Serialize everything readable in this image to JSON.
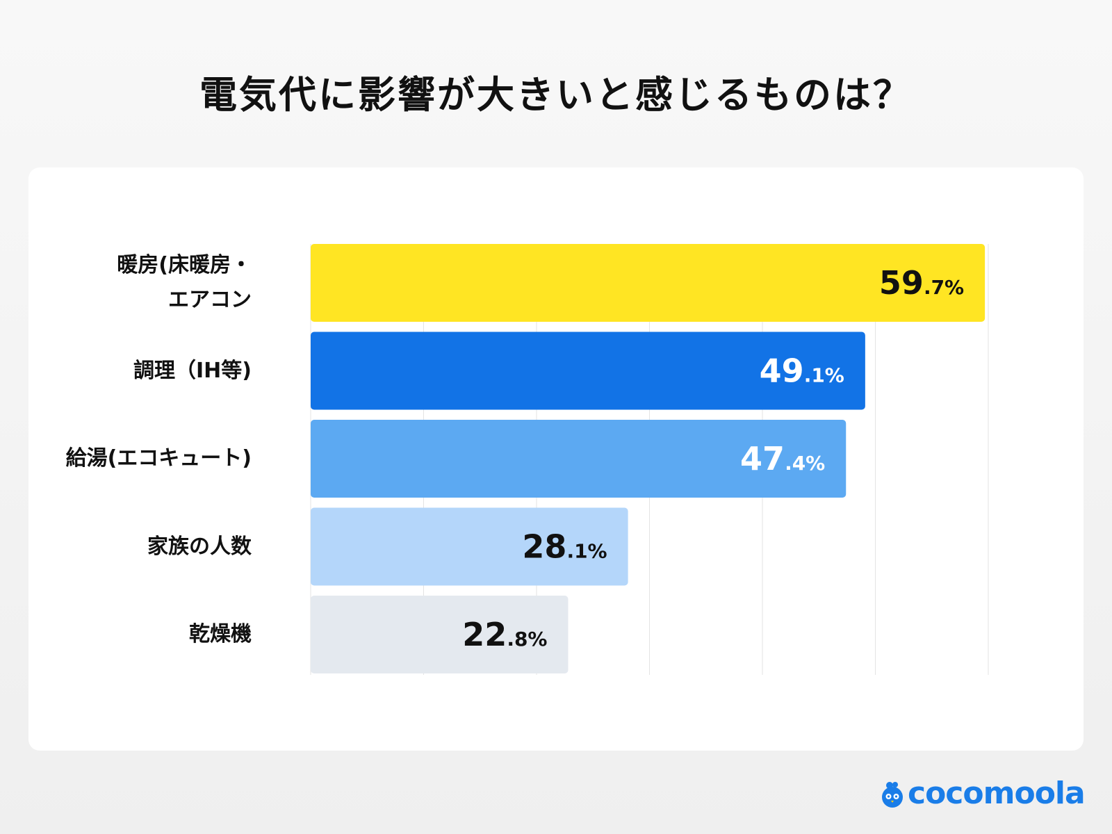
{
  "title": "電気代に影響が大きいと感じるものは？",
  "chart_data": {
    "type": "bar",
    "orientation": "horizontal",
    "categories": [
      "暖房(床暖房・\nエアコン",
      "調理（IH等)",
      "給湯(エコキュート)",
      "家族の人数",
      "乾燥機"
    ],
    "values": [
      59.7,
      49.1,
      47.4,
      28.1,
      22.8
    ],
    "value_suffix": "%",
    "xlim": [
      0,
      60
    ],
    "grid": true,
    "colors": [
      "#FFE523",
      "#1273E6",
      "#5CA9F2",
      "#B4D6FA",
      "#E4E9EF"
    ],
    "label_colors": [
      "#111111",
      "#FFFFFF",
      "#FFFFFF",
      "#111111",
      "#111111"
    ]
  },
  "brand": {
    "name": "cocomoola",
    "color": "#1A7DE8",
    "icon": "bird-mascot-icon"
  }
}
